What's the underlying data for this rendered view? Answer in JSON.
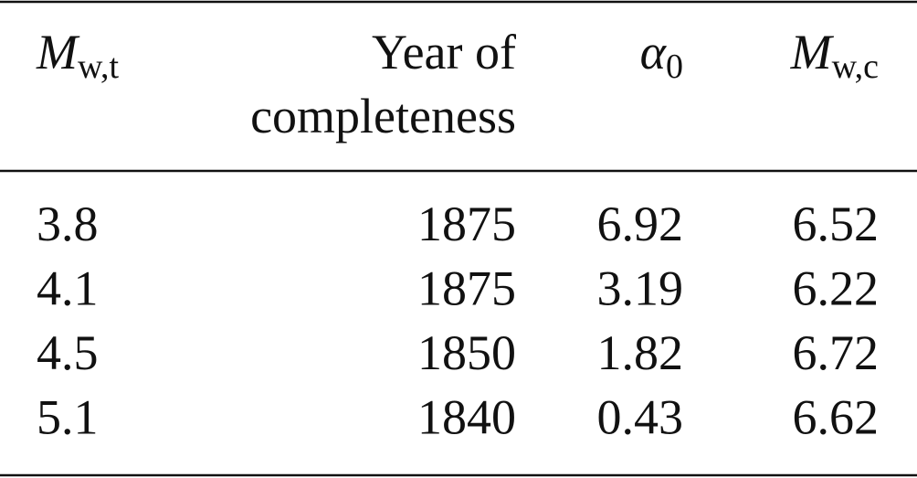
{
  "table": {
    "header": [
      {
        "main": "M",
        "sub": "w,t"
      },
      {
        "lines": [
          "Year of",
          "completeness"
        ]
      },
      {
        "main": "α",
        "sub": "0"
      },
      {
        "main": "M",
        "sub": "w,c"
      }
    ],
    "rows": [
      [
        3.8,
        1875,
        6.92,
        6.52
      ],
      [
        4.1,
        1875,
        3.19,
        6.22
      ],
      [
        4.5,
        1850,
        1.82,
        6.72
      ],
      [
        5.1,
        1840,
        0.43,
        6.62
      ]
    ]
  }
}
